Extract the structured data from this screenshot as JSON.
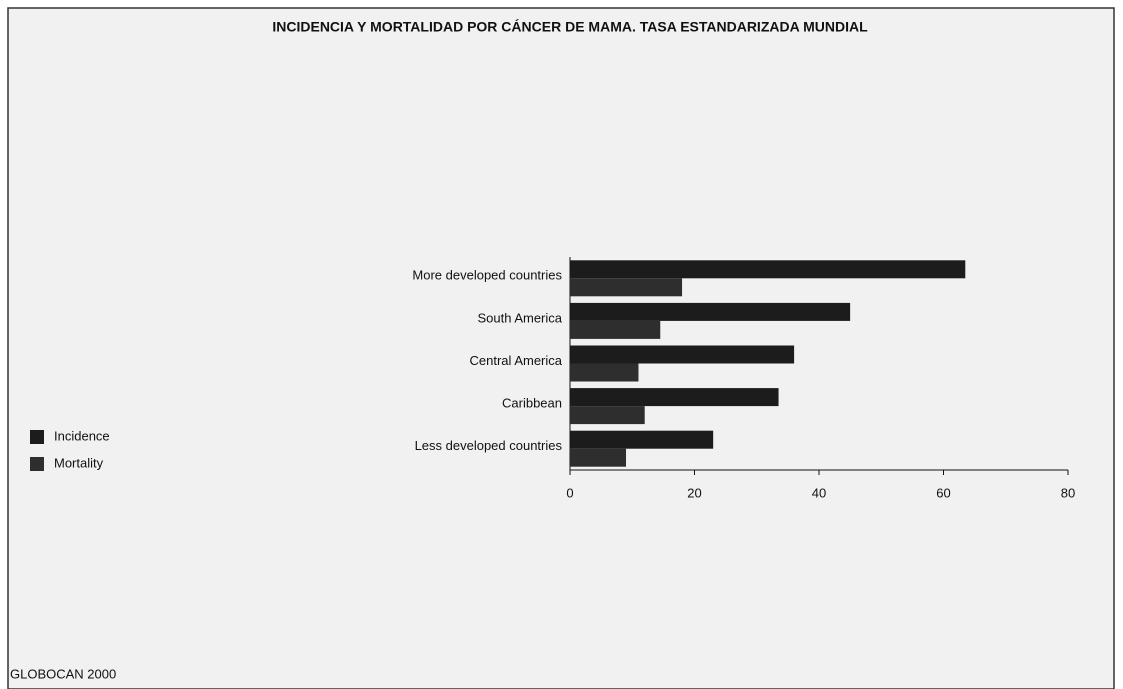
{
  "chart_data": {
    "type": "hbar",
    "title": "INCIDENCIA Y MORTALIDAD POR CÁNCER DE MAMA. TASA ESTANDARIZADA MUNDIAL",
    "categories": [
      "More developed countries",
      "South America",
      "Central America",
      "Caribbean",
      "Less developed countries"
    ],
    "series": [
      {
        "name": "Incidence",
        "color": "#1c1c1c",
        "values": [
          63.5,
          45,
          36,
          33.5,
          23
        ]
      },
      {
        "name": "Mortality",
        "color": "#2e2e2e",
        "values": [
          18,
          14.5,
          11,
          12,
          9
        ]
      }
    ],
    "xlim": [
      0,
      80
    ],
    "xticks": [
      0,
      20,
      40,
      60,
      80
    ],
    "legend": "left",
    "footer": "GLOBOCAN 2000"
  }
}
